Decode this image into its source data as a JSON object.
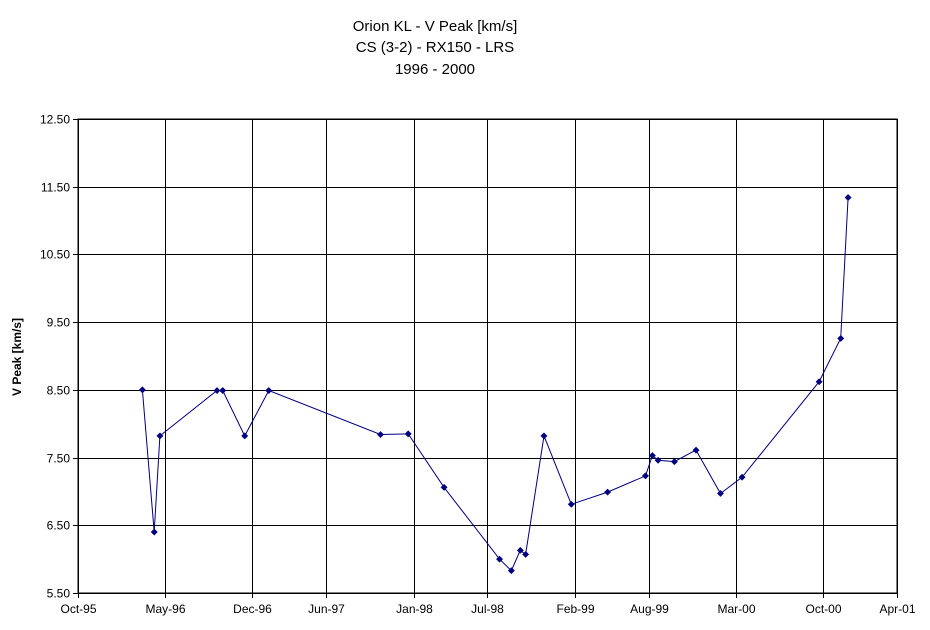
{
  "chart_data": {
    "type": "line",
    "title": [
      "Orion KL - V Peak [km/s]",
      "CS (3-2) - RX150 - LRS",
      "1996 - 2000"
    ],
    "xlabel": "",
    "ylabel": "V Peak [km/s]",
    "ylim": [
      5.5,
      12.5
    ],
    "yticks": [
      5.5,
      6.5,
      7.5,
      8.5,
      9.5,
      10.5,
      11.5,
      12.5
    ],
    "ytick_labels": [
      "5.50",
      "6.50",
      "7.50",
      "8.50",
      "9.50",
      "10.50",
      "11.50",
      "12.50"
    ],
    "xlim": [
      "1995-10-01",
      "2001-04-01"
    ],
    "xticks": [
      "1995-10-01",
      "1996-05-01",
      "1996-12-01",
      "1997-06-01",
      "1998-01-01",
      "1998-07-01",
      "1999-02-01",
      "1999-08-01",
      "2000-03-01",
      "2000-10-01",
      "2001-04-01"
    ],
    "xtick_labels": [
      "Oct-95",
      "May-96",
      "Dec-96",
      "Jun-97",
      "Jan-98",
      "Jul-98",
      "Feb-99",
      "Aug-99",
      "Mar-00",
      "Oct-00",
      "Apr-01"
    ],
    "grid": true,
    "legend": "none",
    "series": [
      {
        "color": "#000080",
        "marker": "diamond",
        "points": [
          {
            "x": "1996-03-07",
            "y": 8.5
          },
          {
            "x": "1996-04-05",
            "y": 6.4
          },
          {
            "x": "1996-04-19",
            "y": 7.82
          },
          {
            "x": "1996-09-06",
            "y": 8.49
          },
          {
            "x": "1996-09-20",
            "y": 8.49
          },
          {
            "x": "1996-11-13",
            "y": 7.82
          },
          {
            "x": "1997-01-11",
            "y": 8.49
          },
          {
            "x": "1997-10-12",
            "y": 7.84
          },
          {
            "x": "1997-12-19",
            "y": 7.85
          },
          {
            "x": "1998-03-17",
            "y": 7.06
          },
          {
            "x": "1998-07-31",
            "y": 6.0
          },
          {
            "x": "1998-08-29",
            "y": 5.83
          },
          {
            "x": "1998-09-20",
            "y": 6.13
          },
          {
            "x": "1998-10-03",
            "y": 6.07
          },
          {
            "x": "1998-11-17",
            "y": 7.82
          },
          {
            "x": "1999-01-23",
            "y": 6.81
          },
          {
            "x": "1999-04-22",
            "y": 6.99
          },
          {
            "x": "1999-07-24",
            "y": 7.23
          },
          {
            "x": "1999-08-10",
            "y": 7.53
          },
          {
            "x": "1999-08-24",
            "y": 7.46
          },
          {
            "x": "1999-10-03",
            "y": 7.44
          },
          {
            "x": "1999-11-25",
            "y": 7.61
          },
          {
            "x": "2000-01-24",
            "y": 6.97
          },
          {
            "x": "2000-03-17",
            "y": 7.21
          },
          {
            "x": "2000-09-22",
            "y": 8.62
          },
          {
            "x": "2000-11-14",
            "y": 9.26
          },
          {
            "x": "2000-12-02",
            "y": 11.34
          }
        ]
      }
    ]
  }
}
